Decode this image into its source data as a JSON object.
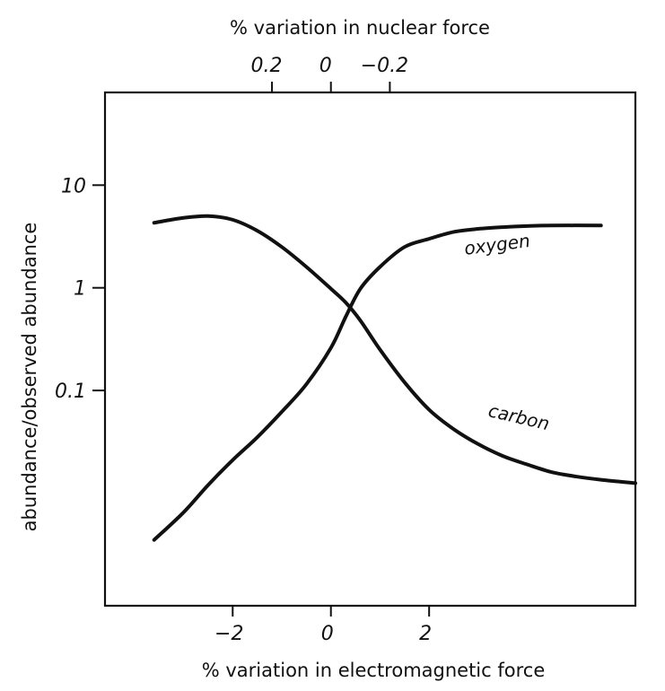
{
  "chart_data": {
    "type": "line",
    "xlabel": "% variation in electromagnetic force",
    "x2label": "% variation in nuclear force",
    "ylabel": "abundance/observed abundance",
    "x_ticks": [
      "−2",
      "0",
      "2"
    ],
    "x_tick_values": [
      -2,
      0,
      2
    ],
    "x2_ticks": [
      "0.2",
      "0",
      "−0.2"
    ],
    "x2_tick_values": [
      0.2,
      0,
      -0.2
    ],
    "x2_tick_em_values": [
      -1.2,
      0,
      1.2
    ],
    "y_ticks": [
      "10",
      "1",
      "0.1"
    ],
    "y_tick_values": [
      10,
      1,
      0.1
    ],
    "xlim": [
      -4.6,
      6.2
    ],
    "ylim": [
      0.0008,
      80
    ],
    "y_scale": "log",
    "series": [
      {
        "name": "oxygen",
        "x": [
          -3.6,
          -3.0,
          -2.5,
          -2.0,
          -1.5,
          -1.0,
          -0.5,
          0.0,
          0.3,
          0.6,
          1.0,
          1.5,
          2.0,
          2.5,
          3.0,
          3.5,
          4.0,
          4.5,
          5.5
        ],
        "y": [
          0.0035,
          0.0065,
          0.012,
          0.021,
          0.035,
          0.062,
          0.115,
          0.26,
          0.52,
          0.98,
          1.6,
          2.5,
          3.0,
          3.5,
          3.75,
          3.9,
          4.0,
          4.05,
          4.05
        ]
      },
      {
        "name": "carbon",
        "x": [
          -3.6,
          -3.0,
          -2.5,
          -2.0,
          -1.5,
          -1.0,
          -0.5,
          0.0,
          0.3,
          0.6,
          1.0,
          1.5,
          2.0,
          2.5,
          3.0,
          3.5,
          4.0,
          4.5,
          5.0,
          5.5,
          6.2
        ],
        "y": [
          4.3,
          4.8,
          5.0,
          4.6,
          3.6,
          2.5,
          1.6,
          0.98,
          0.72,
          0.48,
          0.25,
          0.12,
          0.065,
          0.042,
          0.03,
          0.023,
          0.019,
          0.016,
          0.0145,
          0.0135,
          0.0125
        ]
      }
    ],
    "annotations": [
      {
        "text": "oxygen",
        "x": 3.4,
        "y": 2.3
      },
      {
        "text": "carbon",
        "x": 3.8,
        "y": 0.048
      }
    ],
    "grid": false,
    "legend": "none"
  }
}
